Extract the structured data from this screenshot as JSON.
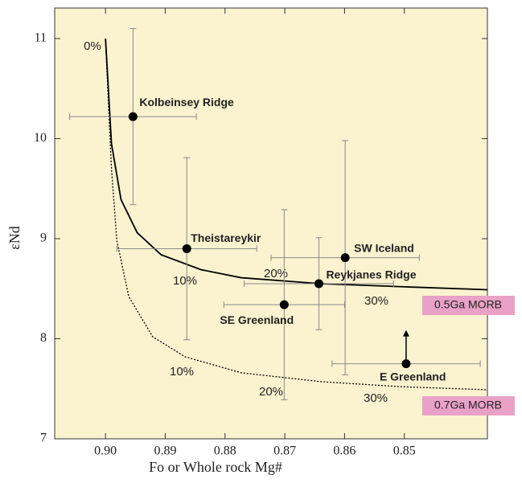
{
  "chart_data": {
    "type": "scatter",
    "x_label": "Fo or Whole rock Mg#",
    "y_label": "εNd",
    "xlim": [
      0.9085,
      0.8361
    ],
    "ylim": [
      7,
      11.305
    ],
    "xticks": [
      {
        "value": 0.9,
        "label": "0.90"
      },
      0.89,
      0.88,
      0.87,
      0.86,
      0.85
    ],
    "yticks": [
      7,
      8,
      9,
      10,
      11
    ],
    "categories": [
      "Kolbeinsey Ridge",
      "Theistareykir",
      "SW Iceland",
      "Reykjanes Ridge",
      "SE Greenland",
      "E Greenland"
    ],
    "x": [
      0.8954,
      0.8864,
      0.8599,
      0.8643,
      0.8701,
      0.8497
    ],
    "values": [
      10.22,
      8.9,
      8.81,
      8.55,
      8.34,
      7.75
    ],
    "xerr": [
      0.0106,
      0.0117,
      0.0124,
      0.0125,
      0.0101,
      0.0124
    ],
    "yerr": [
      0.88,
      0.91,
      1.17,
      0.46,
      0.95,
      null
    ],
    "color": "#000000",
    "curves": [
      {
        "name": "0.5Ga MORB",
        "color": "#000000",
        "dashed": false,
        "x": [
          0.9,
          0.899,
          0.8974,
          0.8947,
          0.8907,
          0.884,
          0.8773,
          0.864,
          0.8504,
          0.8361
        ],
        "values": [
          11.0,
          9.95,
          9.39,
          9.06,
          8.84,
          8.69,
          8.61,
          8.55,
          8.52,
          8.49
        ]
      },
      {
        "name": "0.7Ga MORB",
        "color": "#000000",
        "dashed": true,
        "x": [
          0.9,
          0.899,
          0.8981,
          0.8961,
          0.8921,
          0.8867,
          0.8773,
          0.8638,
          0.8504,
          0.8361
        ],
        "values": [
          11.0,
          9.7,
          8.98,
          8.42,
          8.02,
          7.82,
          7.66,
          7.57,
          7.52,
          7.49
        ]
      }
    ],
    "annotations": [
      "0%",
      "10%",
      "20%",
      "30%",
      "10%",
      "20%",
      "30%"
    ]
  }
}
